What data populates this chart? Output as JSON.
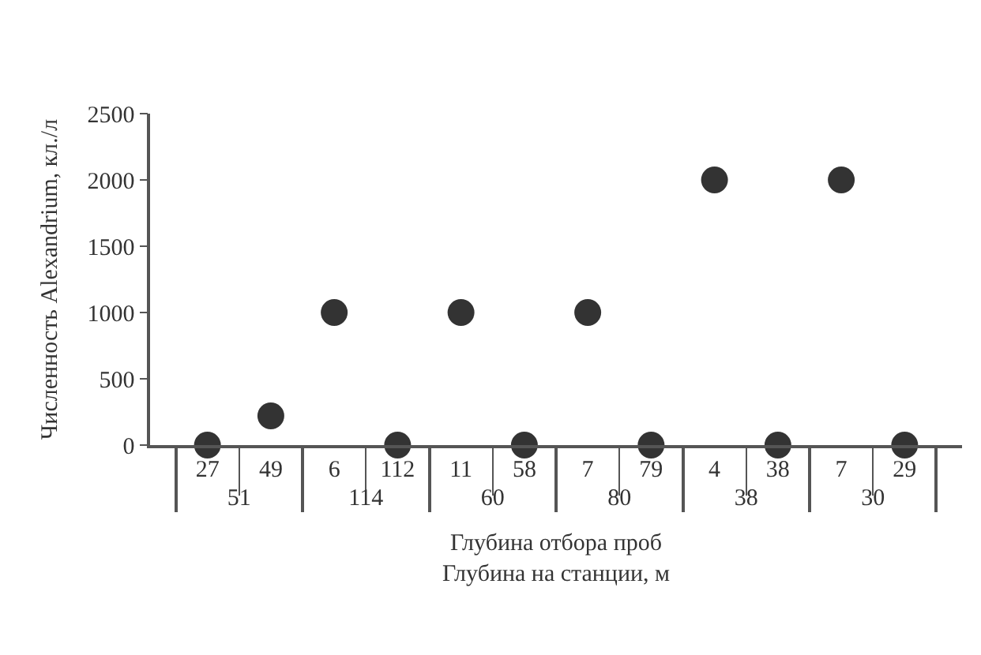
{
  "chart_data": {
    "type": "scatter",
    "xlabel": "Глубина отбора проб\nГлубина на станции, м",
    "ylabel": "Численность Alexandrium, кл./л",
    "categories": [
      "27",
      "49",
      "6",
      "112",
      "11",
      "58",
      "7",
      "79",
      "4",
      "38",
      "7",
      "29"
    ],
    "annotations": [
      "51",
      "114",
      "60",
      "80",
      "38",
      "30"
    ],
    "series": [
      {
        "color": "#333333",
        "values": [
          0,
          220,
          1000,
          0,
          1000,
          0,
          1000,
          0,
          2000,
          0,
          2000,
          0
        ]
      }
    ],
    "ylim": [
      0,
      2500
    ],
    "yticks": [
      0,
      500,
      1000,
      1500,
      2000,
      2500
    ],
    "marker": "circle",
    "legend": false
  }
}
